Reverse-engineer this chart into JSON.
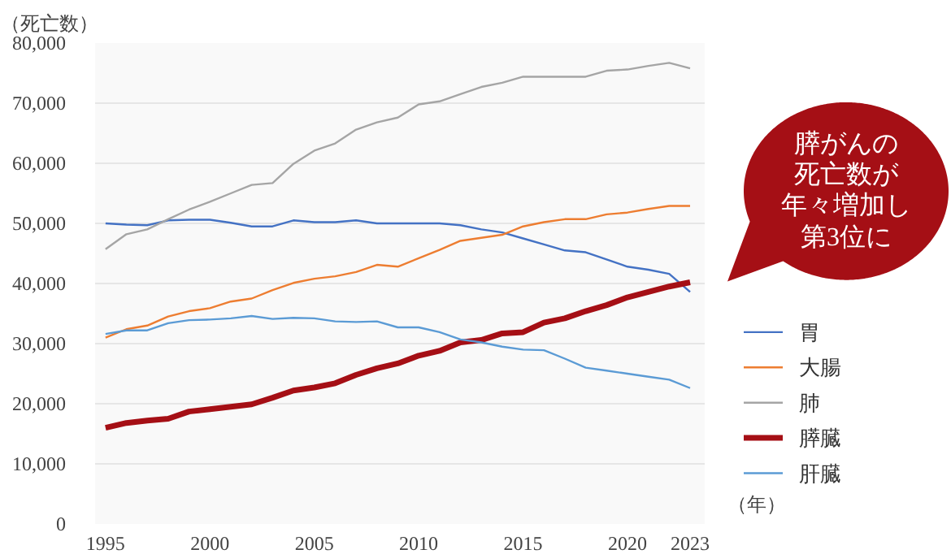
{
  "chart_data": {
    "type": "line",
    "ylabel": "（死亡数）",
    "xlabel": "（年）",
    "x": [
      1995,
      1996,
      1997,
      1998,
      1999,
      2000,
      2001,
      2002,
      2003,
      2004,
      2005,
      2006,
      2007,
      2008,
      2009,
      2010,
      2011,
      2012,
      2013,
      2014,
      2015,
      2016,
      2017,
      2018,
      2019,
      2020,
      2021,
      2022,
      2023
    ],
    "series": [
      {
        "name": "胃",
        "color": "#4472c4",
        "values": [
          50000,
          49800,
          49700,
          50500,
          50600,
          50600,
          50100,
          49500,
          49500,
          50500,
          50200,
          50200,
          50500,
          50000,
          50000,
          50000,
          50000,
          49700,
          49000,
          48500,
          47500,
          46500,
          45500,
          45200,
          44000,
          42800,
          42300,
          41600,
          38600
        ]
      },
      {
        "name": "大腸",
        "color": "#ed7d31",
        "values": [
          31000,
          32400,
          33000,
          34500,
          35400,
          35900,
          37000,
          37500,
          38900,
          40100,
          40800,
          41200,
          41900,
          43100,
          42800,
          44200,
          45600,
          47100,
          47600,
          48100,
          49500,
          50200,
          50700,
          50700,
          51500,
          51800,
          52400,
          52900,
          52900
        ]
      },
      {
        "name": "肺",
        "color": "#a5a5a5",
        "values": [
          45700,
          48200,
          49000,
          50700,
          52300,
          53600,
          55000,
          56400,
          56700,
          59900,
          62100,
          63300,
          65600,
          66800,
          67600,
          69800,
          70300,
          71500,
          72700,
          73400,
          74400,
          74400,
          74400,
          74400,
          75400,
          75600,
          76200,
          76700,
          75800
        ]
      },
      {
        "name": "膵臓",
        "color": "#a50f15",
        "values": [
          16000,
          16800,
          17200,
          17500,
          18700,
          19100,
          19500,
          19900,
          21000,
          22200,
          22700,
          23400,
          24800,
          25900,
          26700,
          28000,
          28800,
          30200,
          30600,
          31700,
          31900,
          33500,
          34200,
          35400,
          36400,
          37700,
          38600,
          39500,
          40200
        ]
      },
      {
        "name": "肝臓",
        "color": "#5b9bd5",
        "values": [
          31600,
          32200,
          32200,
          33400,
          33900,
          34000,
          34200,
          34600,
          34100,
          34300,
          34200,
          33700,
          33600,
          33700,
          32700,
          32700,
          31900,
          30700,
          30200,
          29500,
          29000,
          28900,
          27500,
          26000,
          25500,
          25000,
          24500,
          24000,
          22600
        ]
      }
    ],
    "xlim": [
      1994.5,
      2023.7
    ],
    "xticks": [
      1995,
      2000,
      2005,
      2010,
      2015,
      2020,
      2023
    ],
    "ylim": [
      0,
      80000
    ],
    "yticks": [
      0,
      {
        "value": 10000,
        "label": "10,000"
      },
      {
        "value": 20000,
        "label": "20,000"
      },
      {
        "value": 30000,
        "label": "30,000"
      },
      {
        "value": 40000,
        "label": "40,000"
      },
      {
        "value": 50000,
        "label": "50,000"
      },
      {
        "value": 60000,
        "label": "60,000"
      },
      {
        "value": 70000,
        "label": "70,000"
      },
      {
        "value": 80000,
        "label": "80,000"
      }
    ],
    "grid": "y",
    "legend": "right",
    "annotations": [
      "膵がんの",
      "死亡数が",
      "年々増加し",
      "第3位に"
    ]
  }
}
